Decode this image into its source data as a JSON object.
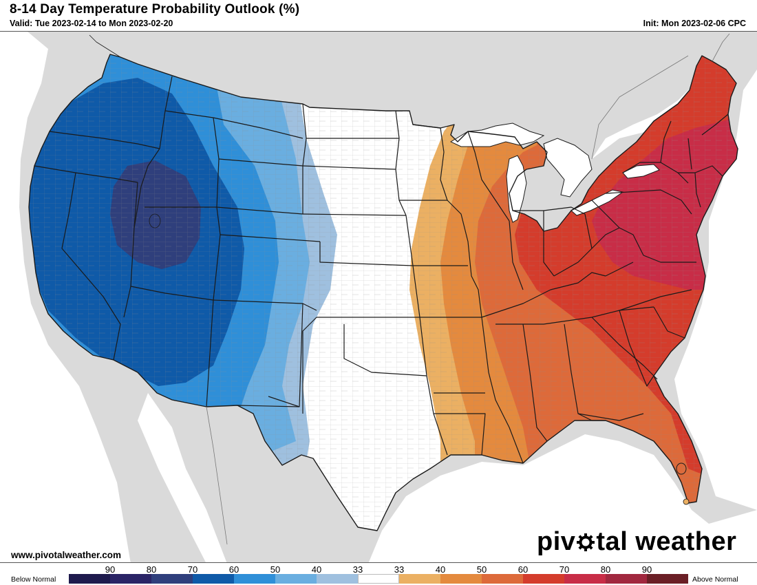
{
  "header": {
    "title": "8-14 Day Temperature Probability Outlook (%)",
    "valid": "Valid: Tue 2023-02-14 to Mon 2023-02-20",
    "init": "Init: Mon 2023-02-06 CPC"
  },
  "footer": {
    "website": "www.pivotalweather.com",
    "brand_prefix": "piv",
    "brand_suffix": "tal weather"
  },
  "legend": {
    "below_label": "Below Normal",
    "above_label": "Above Normal",
    "ticks": [
      "90",
      "80",
      "70",
      "60",
      "50",
      "40",
      "33",
      "33",
      "40",
      "50",
      "60",
      "70",
      "80",
      "90"
    ],
    "colors": [
      "#1e1a4d",
      "#2a2466",
      "#2f3f7c",
      "#0f5aa8",
      "#2f8fd8",
      "#6aaee0",
      "#9fc0df",
      "#ffffff",
      "#ebb063",
      "#e48a3e",
      "#dd6a3a",
      "#d43c2c",
      "#c82d47",
      "#a1283f",
      "#6b1f26"
    ]
  },
  "map": {
    "colors": {
      "land": "#ffffff",
      "outside": "#dadada",
      "water": "#ffffff",
      "borders": "#1a1a1a",
      "counties": "#9a9a9a"
    }
  }
}
